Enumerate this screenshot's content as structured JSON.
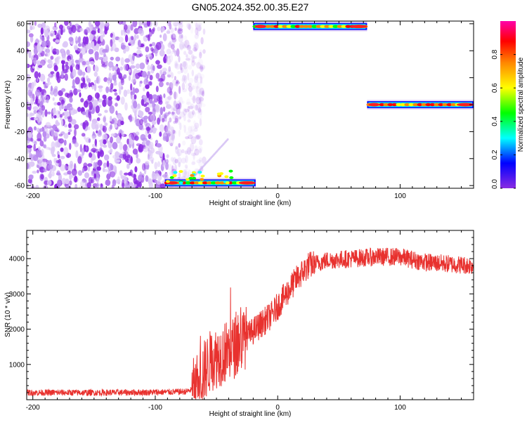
{
  "title": "GN05.2024.352.00.35.E27",
  "colors": {
    "line": "#e8312e",
    "noise": "#8a2be2",
    "colorbar_stops": [
      "#8a2be2",
      "#0000ff",
      "#00ffff",
      "#00ff00",
      "#ffff00",
      "#ff8800",
      "#ff0000",
      "#ff00aa"
    ]
  },
  "chart_data": [
    {
      "type": "heatmap",
      "xlabel": "Height of straight line (km)",
      "ylabel": "Frequency (Hz)",
      "xlim": [
        -205,
        160
      ],
      "ylim": [
        -62,
        62
      ],
      "xticks": [
        "-200",
        "-100",
        "0",
        "100"
      ],
      "xtick_values": [
        -200,
        -100,
        0,
        100
      ],
      "yticks": [
        "60",
        "40",
        "20",
        "0",
        "-20",
        "-40",
        "-60"
      ],
      "ytick_values": [
        60,
        40,
        20,
        0,
        -20,
        -40,
        -60
      ],
      "colorbar": {
        "label": "Normalized spectral amplitude",
        "ticks": [
          "0.0",
          "0.2",
          "0.4",
          "0.6",
          "0.8"
        ],
        "tick_values": [
          0.0,
          0.2,
          0.4,
          0.6,
          0.8
        ],
        "range": [
          0,
          1
        ]
      },
      "noise_region": {
        "x": [
          -205,
          -60
        ],
        "freq": [
          -62,
          62
        ]
      },
      "bands": [
        {
          "x": [
            -20,
            73
          ],
          "freq": 58,
          "amp_peak": 0.95
        },
        {
          "x": [
            73,
            160
          ],
          "freq": 0,
          "amp_peak": 0.95
        },
        {
          "x": [
            -92,
            -18
          ],
          "freq": -58,
          "amp_peak": 0.9
        }
      ]
    },
    {
      "type": "line",
      "xlabel": "Height of straight line (km)",
      "ylabel": "SNR (10 * v/v)",
      "xlim": [
        -205,
        160
      ],
      "ylim": [
        0,
        4800
      ],
      "xticks": [
        "-200",
        "-100",
        "0",
        "100"
      ],
      "xtick_values": [
        -200,
        -100,
        0,
        100
      ],
      "yticks": [
        "4000",
        "3000",
        "2000",
        "1000"
      ],
      "ytick_values": [
        4000,
        3000,
        2000,
        1000
      ],
      "series": [
        {
          "x": [
            -205,
            -150,
            -100,
            -75,
            -68,
            -62,
            -55,
            -45,
            -35,
            -25,
            -15,
            -5,
            5,
            15,
            25,
            40,
            60,
            80,
            100,
            120,
            140,
            160
          ],
          "values": [
            200,
            200,
            210,
            230,
            300,
            700,
            1100,
            1300,
            1500,
            1800,
            2100,
            2400,
            2900,
            3400,
            3800,
            3950,
            4000,
            4050,
            4050,
            3900,
            3850,
            3800
          ]
        }
      ]
    }
  ]
}
